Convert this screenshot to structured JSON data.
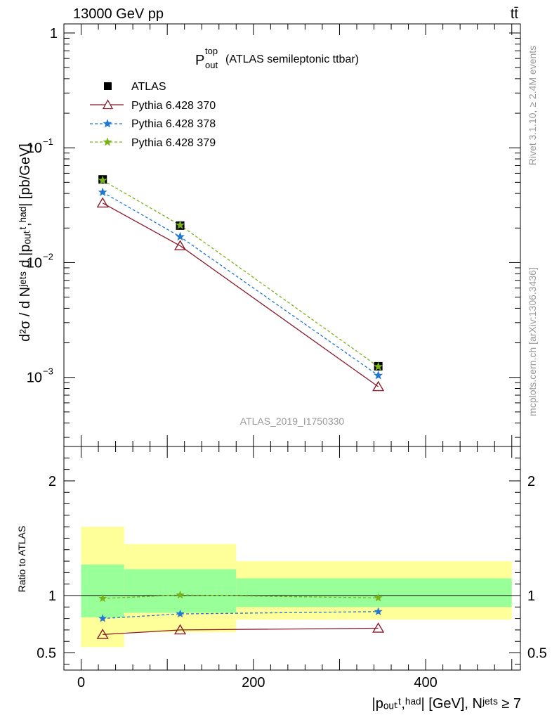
{
  "header": {
    "energy_label": "13000 GeV pp",
    "process_label": "tt̄"
  },
  "side_labels": {
    "rivet": "Rivet 3.1.10, ≥ 2.4M events",
    "source": "mcplots.cern.ch [arXiv:1306.3436]"
  },
  "colors": {
    "atlas": "#000000",
    "py370": "#8b1a2b",
    "py378": "#1f77d0",
    "py379": "#7ab317",
    "band_inner": "#99ff99",
    "band_outer": "#ffff99"
  },
  "chart_data": [
    {
      "type": "line",
      "title_main": "P",
      "title_sup": "top",
      "title_sub": "out",
      "title_suffix": "(ATLAS semileptonic ttbar)",
      "watermark": "ATLAS_2019_I1750330",
      "ylabel": "d²σ / d Nʲᵉᵗˢ d |pₒᵤₜᵗ,ʰᵃᵈ| [pb/GeV]",
      "yscale": "log",
      "ylim": [
        0.00025,
        1.2
      ],
      "xlim": [
        -20,
        510
      ],
      "yticks": [
        {
          "value": 1,
          "label_base": "1",
          "label_exp": ""
        },
        {
          "value": 0.1,
          "label_base": "10",
          "label_exp": "−1"
        },
        {
          "value": 0.01,
          "label_base": "10",
          "label_exp": "−2"
        },
        {
          "value": 0.001,
          "label_base": "10",
          "label_exp": "−3"
        }
      ],
      "legend_position": "top-left",
      "series": [
        {
          "name": "ATLAS",
          "marker": "square",
          "color": "#000000",
          "x": [
            25,
            115,
            345
          ],
          "y": [
            0.053,
            0.021,
            0.00125
          ]
        },
        {
          "name": "Pythia 6.428 370",
          "marker": "triangle",
          "line": "solid",
          "color": "#8b1a2b",
          "x": [
            25,
            115,
            345
          ],
          "y": [
            0.033,
            0.014,
            0.00083
          ]
        },
        {
          "name": "Pythia 6.428 378",
          "marker": "star",
          "line": "dashed",
          "color": "#1f77d0",
          "x": [
            25,
            115,
            345
          ],
          "y": [
            0.041,
            0.0168,
            0.00104
          ]
        },
        {
          "name": "Pythia 6.428 379",
          "marker": "star",
          "line": "dashed",
          "color": "#7ab317",
          "x": [
            25,
            115,
            345
          ],
          "y": [
            0.052,
            0.0212,
            0.00124
          ]
        }
      ]
    },
    {
      "type": "line",
      "ylabel": "Ratio to ATLAS",
      "xlabel": "|pₒᵤₜᵗ,ʰᵃᵈ| [GeV], Nʲᵉᵗˢ ≥ 7",
      "ylim": [
        0.35,
        2.3
      ],
      "xlim": [
        -20,
        510
      ],
      "yticks": [
        0.5,
        1,
        2
      ],
      "ytick_labels": [
        "0.5",
        "1",
        "2"
      ],
      "xticks": [
        0,
        200,
        400
      ],
      "xtick_labels": [
        "0",
        "200",
        "400"
      ],
      "bands": [
        {
          "x": [
            0,
            50
          ],
          "inner": [
            0.81,
            1.27
          ],
          "outer": [
            0.55,
            1.6
          ]
        },
        {
          "x": [
            50,
            180
          ],
          "inner": [
            0.85,
            1.23
          ],
          "outer": [
            0.68,
            1.45
          ]
        },
        {
          "x": [
            180,
            500
          ],
          "inner": [
            0.9,
            1.15
          ],
          "outer": [
            0.79,
            1.3
          ]
        }
      ],
      "reference_line": 1,
      "series": [
        {
          "name": "Pythia 6.428 370",
          "marker": "triangle",
          "line": "solid",
          "color": "#8b1a2b",
          "x": [
            25,
            115,
            345
          ],
          "y": [
            0.66,
            0.7,
            0.715
          ]
        },
        {
          "name": "Pythia 6.428 378",
          "marker": "star",
          "line": "dashed",
          "color": "#1f77d0",
          "x": [
            25,
            115,
            345
          ],
          "y": [
            0.8,
            0.84,
            0.86
          ]
        },
        {
          "name": "Pythia 6.428 379",
          "marker": "star",
          "line": "dashed",
          "color": "#7ab317",
          "x": [
            25,
            115,
            345
          ],
          "y": [
            0.975,
            1.005,
            0.98
          ]
        }
      ]
    }
  ]
}
